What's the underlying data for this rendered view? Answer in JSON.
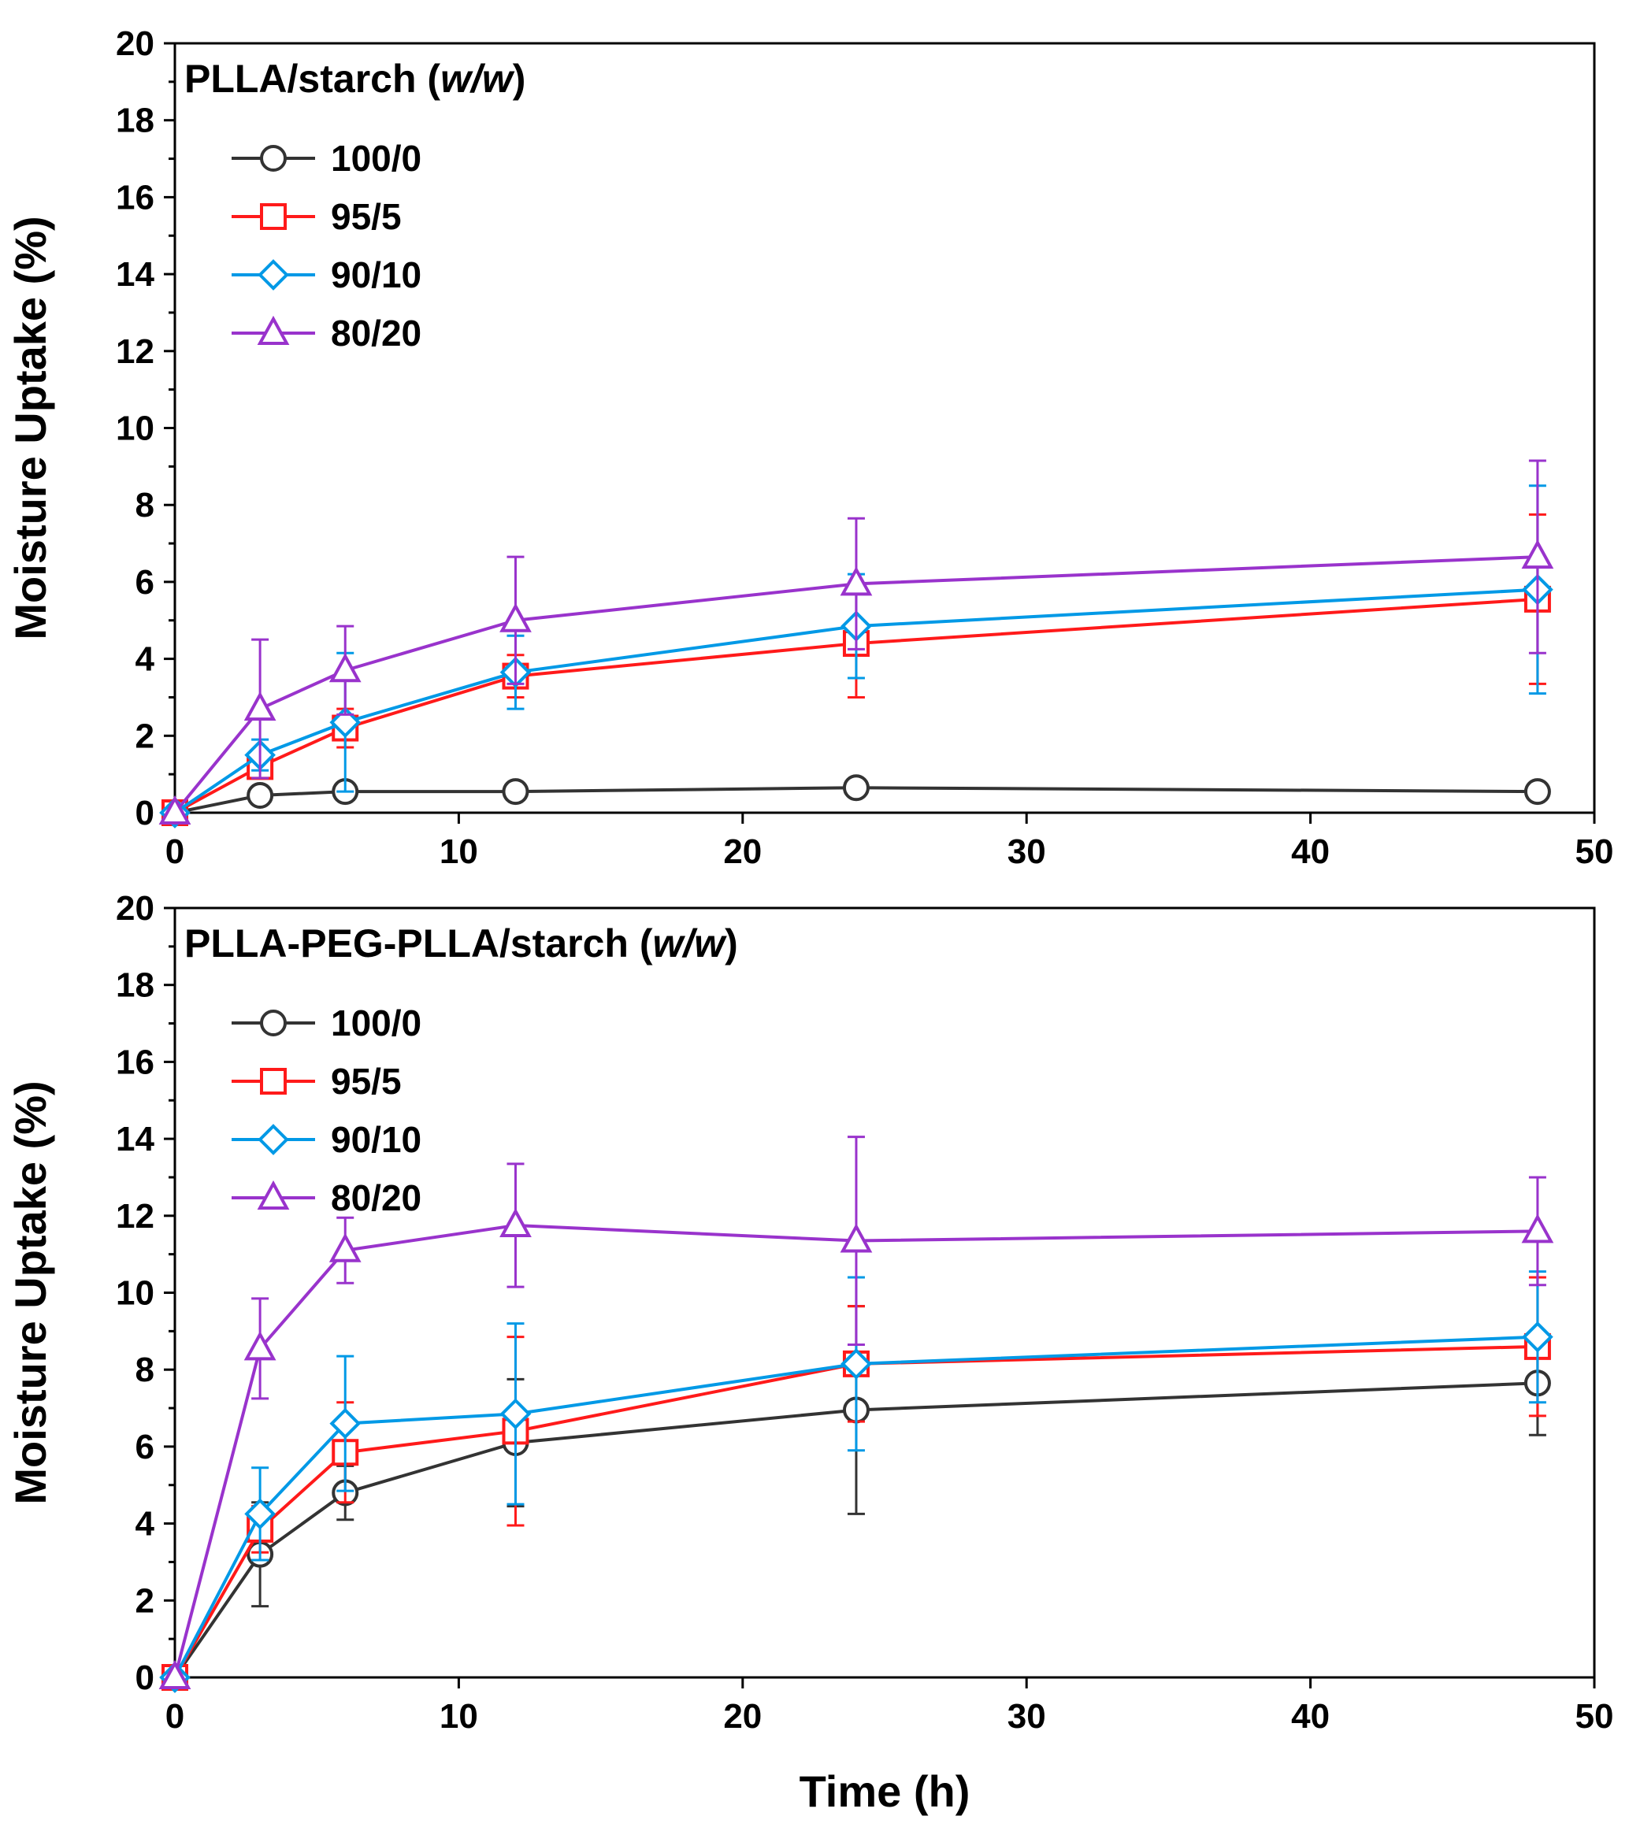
{
  "chart_data": [
    {
      "type": "line",
      "title_main": "PLLA/starch (",
      "title_italic": "w/w",
      "title_close": ")",
      "xlabel": "",
      "ylabel": "Moisture Uptake (%)",
      "xlim": [
        0,
        50
      ],
      "ylim": [
        0,
        20
      ],
      "xticks": [
        "0",
        "10",
        "20",
        "30",
        "40",
        "50"
      ],
      "yticks": [
        "0",
        "2",
        "4",
        "6",
        "8",
        "10",
        "12",
        "14",
        "16",
        "18",
        "20"
      ],
      "x": [
        0,
        3,
        6,
        12,
        24,
        48
      ],
      "grid": false,
      "legend_position": "top-left",
      "series": [
        {
          "name": "100/0",
          "color": "#333333",
          "marker": "circle",
          "values": [
            0,
            0.45,
            0.55,
            0.55,
            0.65,
            0.55
          ],
          "err": [
            0.1,
            0.1,
            0.1,
            0.1,
            0.1,
            0.1
          ]
        },
        {
          "name": "95/5",
          "color": "#ff1a1a",
          "marker": "square",
          "values": [
            0,
            1.2,
            2.2,
            3.55,
            4.4,
            5.55
          ],
          "err": [
            0.1,
            0.3,
            0.5,
            0.55,
            1.4,
            2.2
          ]
        },
        {
          "name": "90/10",
          "color": "#0099e6",
          "marker": "diamond",
          "values": [
            0,
            1.5,
            2.35,
            3.65,
            4.85,
            5.8
          ],
          "err": [
            0.1,
            0.4,
            1.8,
            0.95,
            1.35,
            2.7
          ]
        },
        {
          "name": "80/20",
          "color": "#9933cc",
          "marker": "triangle",
          "values": [
            0,
            2.7,
            3.7,
            5.0,
            5.95,
            6.65
          ],
          "err": [
            0.1,
            1.8,
            1.15,
            1.65,
            1.7,
            2.5
          ]
        }
      ]
    },
    {
      "type": "line",
      "title_main": "PLLA-PEG-PLLA/starch (",
      "title_italic": "w/w",
      "title_close": ")",
      "xlabel": "Time (h)",
      "ylabel": "Moisture Uptake (%)",
      "xlim": [
        0,
        50
      ],
      "ylim": [
        0,
        20
      ],
      "xticks": [
        "0",
        "10",
        "20",
        "30",
        "40",
        "50"
      ],
      "yticks": [
        "0",
        "2",
        "4",
        "6",
        "8",
        "10",
        "12",
        "14",
        "16",
        "18",
        "20"
      ],
      "x": [
        0,
        3,
        6,
        12,
        24,
        48
      ],
      "grid": false,
      "legend_position": "top-left",
      "series": [
        {
          "name": "100/0",
          "color": "#333333",
          "marker": "circle",
          "values": [
            0,
            3.2,
            4.8,
            6.1,
            6.95,
            7.65
          ],
          "err": [
            0.1,
            1.35,
            0.7,
            1.65,
            2.7,
            1.35
          ]
        },
        {
          "name": "95/5",
          "color": "#ff1a1a",
          "marker": "square",
          "values": [
            0,
            3.85,
            5.85,
            6.4,
            8.15,
            8.6
          ],
          "err": [
            0.1,
            0.6,
            1.3,
            2.45,
            1.5,
            1.8
          ]
        },
        {
          "name": "90/10",
          "color": "#0099e6",
          "marker": "diamond",
          "values": [
            0,
            4.25,
            6.6,
            6.85,
            8.15,
            8.85
          ],
          "err": [
            0.1,
            1.2,
            1.75,
            2.35,
            2.25,
            1.7
          ]
        },
        {
          "name": "80/20",
          "color": "#9933cc",
          "marker": "triangle",
          "values": [
            0,
            8.55,
            11.1,
            11.75,
            11.35,
            11.6
          ],
          "err": [
            0.1,
            1.3,
            0.85,
            1.6,
            2.7,
            1.4
          ]
        }
      ]
    }
  ]
}
